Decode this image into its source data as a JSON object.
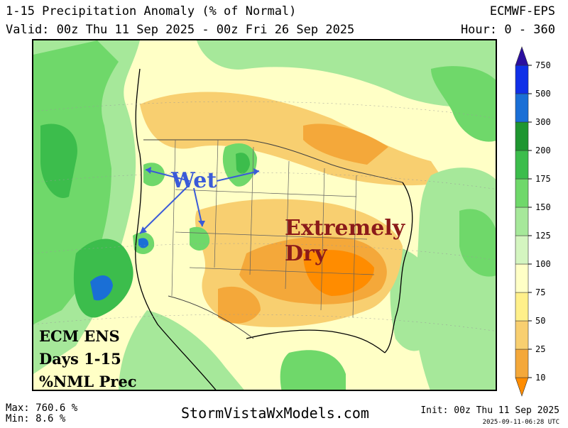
{
  "header": {
    "title": "1-15 Precipitation Anomaly (% of Normal)",
    "valid": "Valid: 00z Thu 11 Sep 2025 - 00z Fri 26 Sep 2025",
    "model": "ECMWF-EPS",
    "hours": "Hour: 0 - 360"
  },
  "annotations": {
    "wet": "Wet",
    "dry_line1": "Extremely",
    "dry_line2": "Dry",
    "ecm_line1": "ECM ENS",
    "ecm_line2": "Days 1-15",
    "ecm_line3": "%NML Prec"
  },
  "colorbar": {
    "levels": [
      "10",
      "25",
      "50",
      "75",
      "100",
      "125",
      "150",
      "175",
      "200",
      "300",
      "500",
      "750"
    ],
    "colors": [
      "#ff8c00",
      "#f4a83a",
      "#f8cf70",
      "#fff08a",
      "#ffffc6",
      "#d4f5c0",
      "#a6e89a",
      "#6fd86a",
      "#3cbd4c",
      "#1e9630",
      "#1a6fd6",
      "#1030e8",
      "#2b0fa0"
    ]
  },
  "footer": {
    "max": "Max: 760.6 %",
    "min": "Min: 8.6 %",
    "site": "StormVistaWxModels.com",
    "init": "Init: 00z Thu 11 Sep 2025",
    "stamp": "2025-09-11-06:28 UTC"
  },
  "colors": {
    "wet_text": "#3a5ad8",
    "dry_text": "#8b1a1a",
    "land_border": "#000000",
    "state_border": "#606060"
  }
}
